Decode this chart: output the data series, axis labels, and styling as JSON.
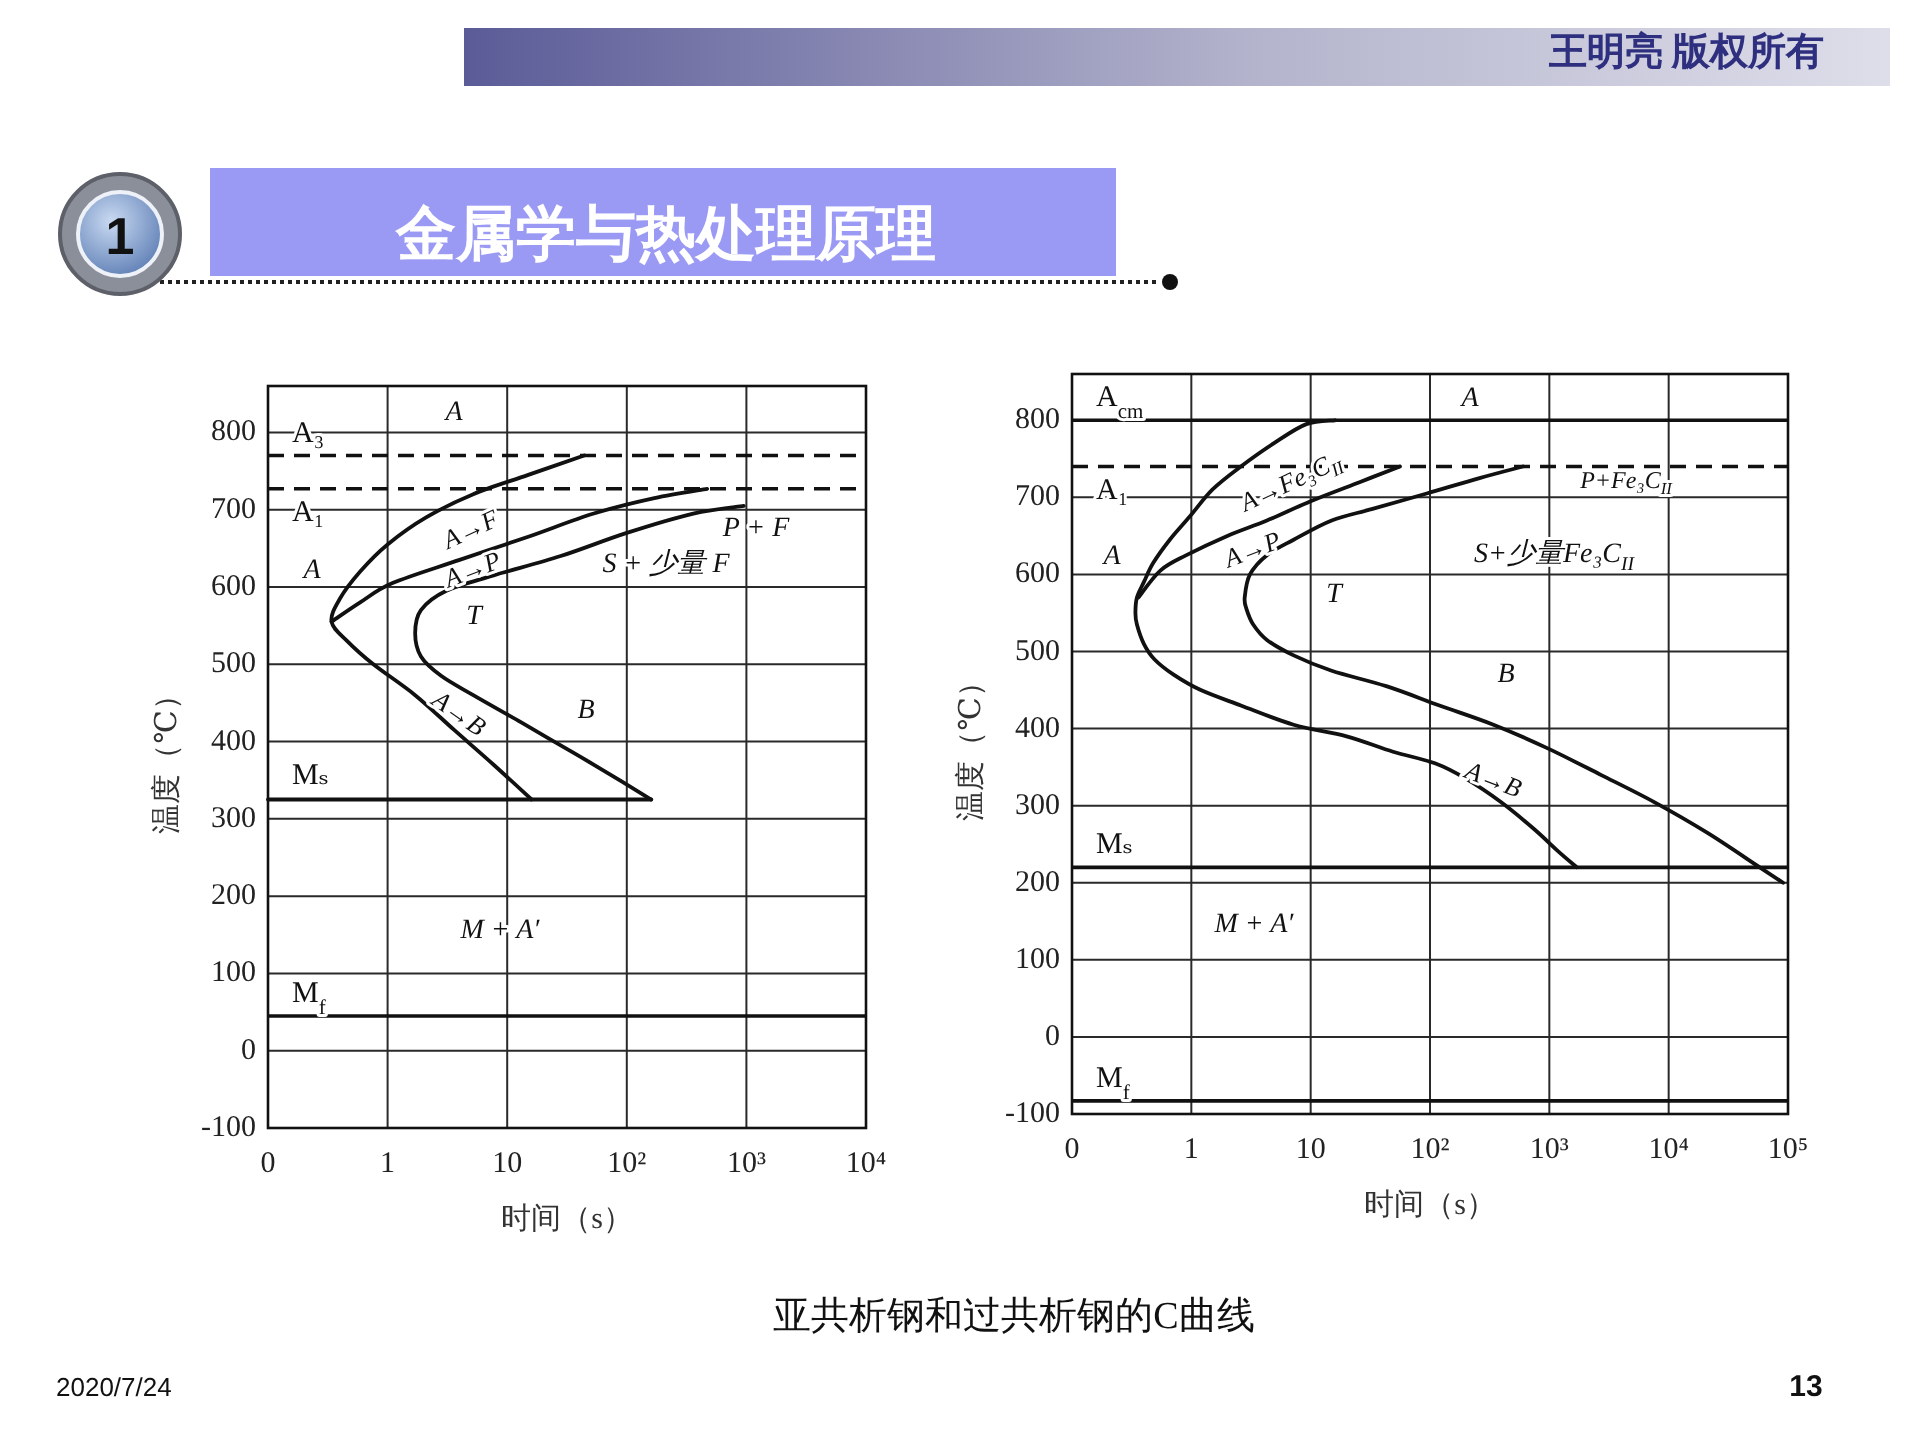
{
  "chart_data": [
    {
      "type": "line",
      "title": "金属学与热处理原理",
      "xlabel": "时间（s）",
      "ylabel": "温度（℃）",
      "log": "x",
      "xlim": [
        0.1,
        10000
      ],
      "xticks": [
        {
          "value": 0.1,
          "label": "0"
        },
        {
          "value": 1,
          "label": "1"
        },
        {
          "value": 10,
          "label": "10"
        },
        {
          "value": 100,
          "label": "10²"
        },
        {
          "value": 1000,
          "label": "10³"
        },
        {
          "value": 10000,
          "label": "10⁴"
        }
      ],
      "ylim": [
        -100,
        860
      ],
      "yticks": [
        -100,
        0,
        100,
        200,
        300,
        400,
        500,
        600,
        700,
        800
      ],
      "grid": true,
      "series": [
        {
          "color": "#111111",
          "x": [
            16,
            7.7,
            3.6,
            1.7,
            0.76,
            0.46,
            0.34,
            0.4,
            0.59,
            1.0,
            2.1,
            5.2,
            15,
            44
          ],
          "values": [
            325,
            370,
            415,
            460,
            500,
            530,
            555,
            585,
            620,
            655,
            690,
            720,
            745,
            770
          ]
        },
        {
          "color": "#111111",
          "x": [
            0.34,
            0.59,
            1.1,
            4.0,
            15,
            53,
            170,
            470
          ],
          "values": [
            555,
            580,
            605,
            635,
            665,
            695,
            715,
            727
          ]
        },
        {
          "color": "#111111",
          "x": [
            160,
            60,
            28,
            13,
            5.2,
            2.8,
            1.9,
            1.7,
            1.9,
            3.1,
            7.7,
            28,
            100,
            360,
            950
          ],
          "values": [
            325,
            365,
            395,
            425,
            460,
            485,
            510,
            540,
            570,
            595,
            615,
            640,
            670,
            695,
            705
          ]
        },
        {
          "name": "Mₛ",
          "color": "#111111",
          "x": [
            0.1,
            160
          ],
          "values": [
            325,
            325
          ]
        }
      ],
      "ref_lines": [
        {
          "axis": "y",
          "value": 770,
          "label": "A₃",
          "color": "#111111",
          "line_style": "dashed"
        },
        {
          "axis": "y",
          "value": 727,
          "label": "A₁",
          "color": "#111111",
          "line_style": "dashed"
        },
        {
          "axis": "y",
          "value": 45,
          "label": "M$_{f}$",
          "color": "#111111"
        }
      ],
      "annotations": [
        "A",
        "A",
        "A→F",
        "A→P",
        "P + F",
        "S + 少量 F",
        "T",
        "B",
        "A→B",
        "M + A′",
        "王明亮 版权所有",
        "1",
        "亚共析钢和过共析钢的C曲线",
        "2020/7/24",
        "13"
      ]
    },
    {
      "type": "line",
      "xlabel": "时间（s）",
      "ylabel": "温度（℃）",
      "log": "x",
      "xlim": [
        0.1,
        100000
      ],
      "xticks": [
        {
          "value": 0.1,
          "label": "0"
        },
        {
          "value": 1,
          "label": "1"
        },
        {
          "value": 10,
          "label": "10"
        },
        {
          "value": 100,
          "label": "10²"
        },
        {
          "value": 1000,
          "label": "10³"
        },
        {
          "value": 10000,
          "label": "10⁴"
        },
        {
          "value": 100000,
          "label": "10⁵"
        }
      ],
      "ylim": [
        -100,
        860
      ],
      "yticks": [
        -100,
        0,
        100,
        200,
        300,
        400,
        500,
        600,
        700,
        800
      ],
      "grid": true,
      "series": [
        {
          "color": "#111111",
          "x": [
            1700,
            1200,
            740,
            390,
            200,
            110,
            49,
            20,
            7.2,
            2.6,
            1.2,
            0.71,
            0.49,
            0.4,
            0.35,
            0.34,
            0.35,
            0.4,
            0.48,
            0.66,
            0.97,
            1.5,
            2.6,
            4.9,
            9.2,
            16
          ],
          "values": [
            220,
            240,
            270,
            305,
            335,
            355,
            370,
            390,
            405,
            430,
            450,
            470,
            490,
            510,
            535,
            550,
            570,
            590,
            615,
            645,
            675,
            710,
            740,
            770,
            795,
            800
          ]
        },
        {
          "color": "#111111",
          "x": [
            0.36,
            0.55,
            0.91,
            2.0,
            4.3,
            10,
            26,
            56
          ],
          "values": [
            570,
            605,
            625,
            650,
            670,
            695,
            720,
            740
          ]
        },
        {
          "color": "#111111",
          "x": [
            91000,
            58000,
            21000,
            7500,
            2700,
            950,
            340,
            120,
            43,
            15,
            7.2,
            4.3,
            3.3,
            2.9,
            2.8,
            3.1,
            4.3,
            7.2,
            15,
            33,
            94,
            260,
            600
          ],
          "values": [
            200,
            220,
            265,
            305,
            340,
            375,
            405,
            430,
            455,
            475,
            495,
            515,
            535,
            555,
            570,
            600,
            625,
            645,
            670,
            685,
            705,
            725,
            740
          ]
        }
      ],
      "ref_lines": [
        {
          "axis": "y",
          "value": 800,
          "label": "A$_{cm}$",
          "color": "#111111"
        },
        {
          "axis": "y",
          "value": 740,
          "label": "A₁",
          "color": "#111111",
          "line_style": "dashed"
        },
        {
          "axis": "y",
          "value": 220,
          "label": "Mₛ",
          "color": "#111111"
        },
        {
          "axis": "y",
          "value": -83,
          "label": "M$_{f}$",
          "color": "#111111"
        }
      ],
      "annotations": [
        "A",
        "A",
        "A→Fe₃C$_{II}$",
        "A→P",
        "P+Fe₃C$_{II}$",
        "S+少量Fe₃C$_{II}$",
        "T",
        "B",
        "A→B",
        "M + A′"
      ]
    }
  ]
}
